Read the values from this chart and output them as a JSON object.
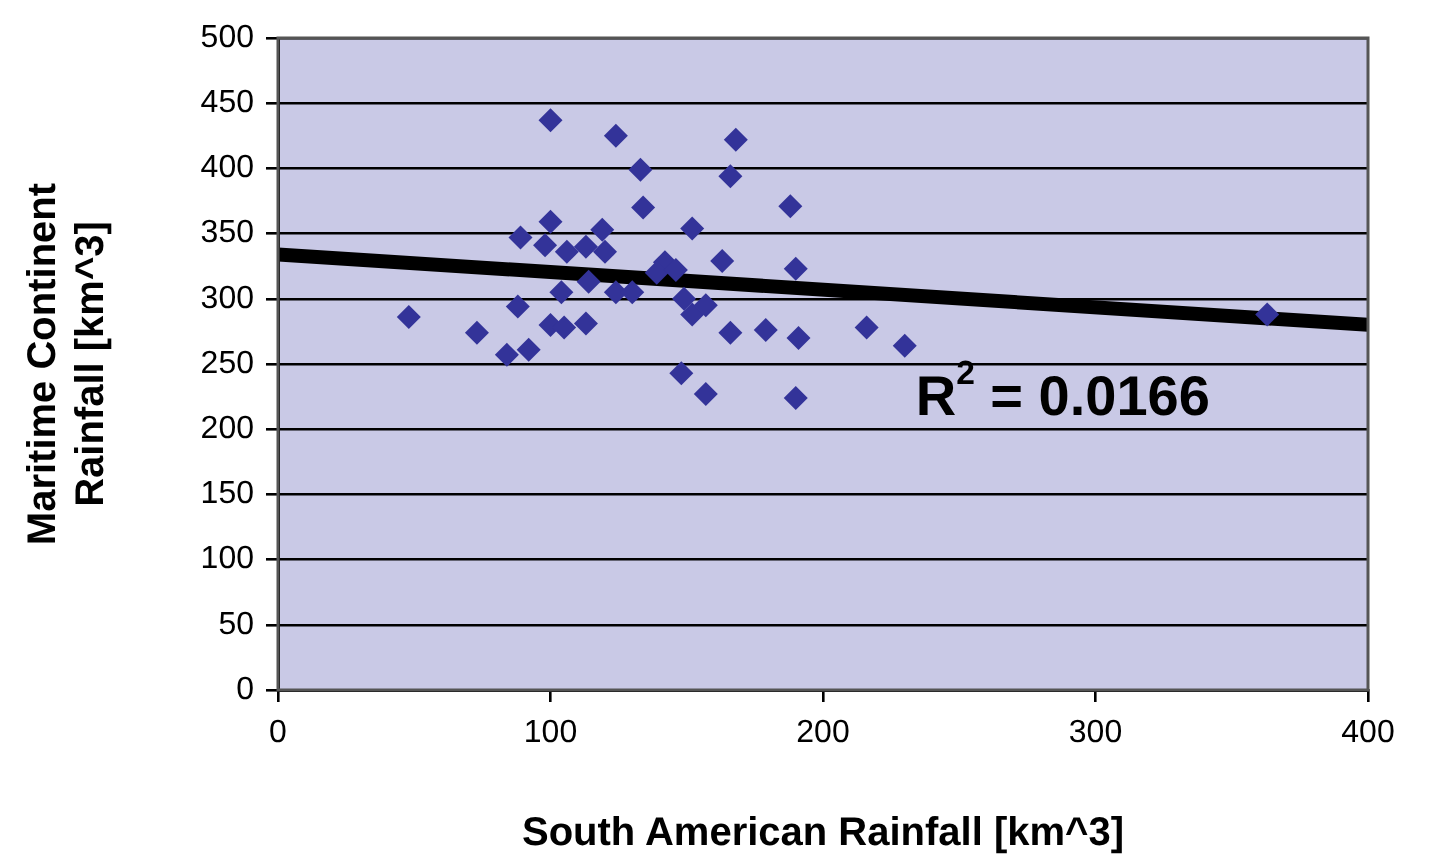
{
  "chart_data": {
    "type": "scatter",
    "xlabel": "South American Rainfall [km^3]",
    "ylabel": "Maritime Continent\nRainfall [km^3]",
    "xlim": [
      0,
      400
    ],
    "xticks": [
      0,
      100,
      200,
      300,
      400
    ],
    "ylim": [
      0,
      500
    ],
    "yticks": [
      0,
      50,
      100,
      150,
      200,
      250,
      300,
      350,
      400,
      450,
      500
    ],
    "grid": "y",
    "legend": false,
    "annotations": [
      "R$^{2}$ = 0.0166"
    ],
    "series": [
      {
        "color": "#333399",
        "marker": "diamond",
        "x": [
          100,
          124,
          168,
          133,
          166,
          134,
          188,
          89,
          100,
          119,
          152,
          98,
          106,
          113,
          120,
          142,
          139,
          146,
          163,
          190,
          104,
          114,
          124,
          130,
          149,
          48,
          88,
          73,
          100,
          105,
          113,
          84,
          92,
          152,
          157,
          166,
          179,
          191,
          148,
          157,
          190,
          216,
          230,
          363
        ],
        "values": [
          437,
          425,
          422,
          399,
          394,
          370,
          371,
          347,
          359,
          353,
          354,
          341,
          336,
          340,
          336,
          328,
          320,
          322,
          329,
          323,
          305,
          313,
          305,
          305,
          300,
          286,
          294,
          274,
          280,
          278,
          281,
          257,
          261,
          288,
          295,
          274,
          276,
          270,
          243,
          227,
          224,
          278,
          264,
          288
        ]
      },
      {
        "type": "line",
        "color": "#000000",
        "x": [
          0,
          400
        ],
        "values": [
          334,
          280
        ]
      }
    ]
  }
}
